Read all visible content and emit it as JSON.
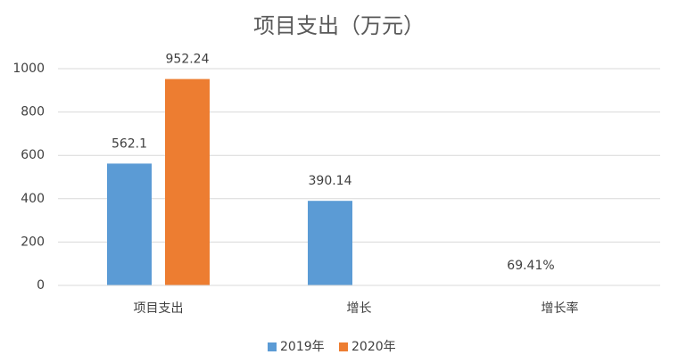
{
  "chart_data": {
    "type": "bar",
    "title": "项目支出（万元）",
    "categories": [
      "项目支出",
      "增长",
      "增长率"
    ],
    "series": [
      {
        "name": "2019年",
        "color": "#5b9bd5",
        "values": [
          562.1,
          390.14,
          0.6941
        ],
        "value_labels": [
          "562.1",
          "390.14",
          "69.41%"
        ]
      },
      {
        "name": "2020年",
        "color": "#ed7d31",
        "values": [
          952.24,
          null,
          null
        ],
        "value_labels": [
          "952.24",
          null,
          null
        ]
      }
    ],
    "ylim": [
      0,
      1000
    ],
    "yticks": [
      0,
      200,
      400,
      600,
      800,
      1000
    ],
    "grid": true,
    "legend": "bottom"
  }
}
